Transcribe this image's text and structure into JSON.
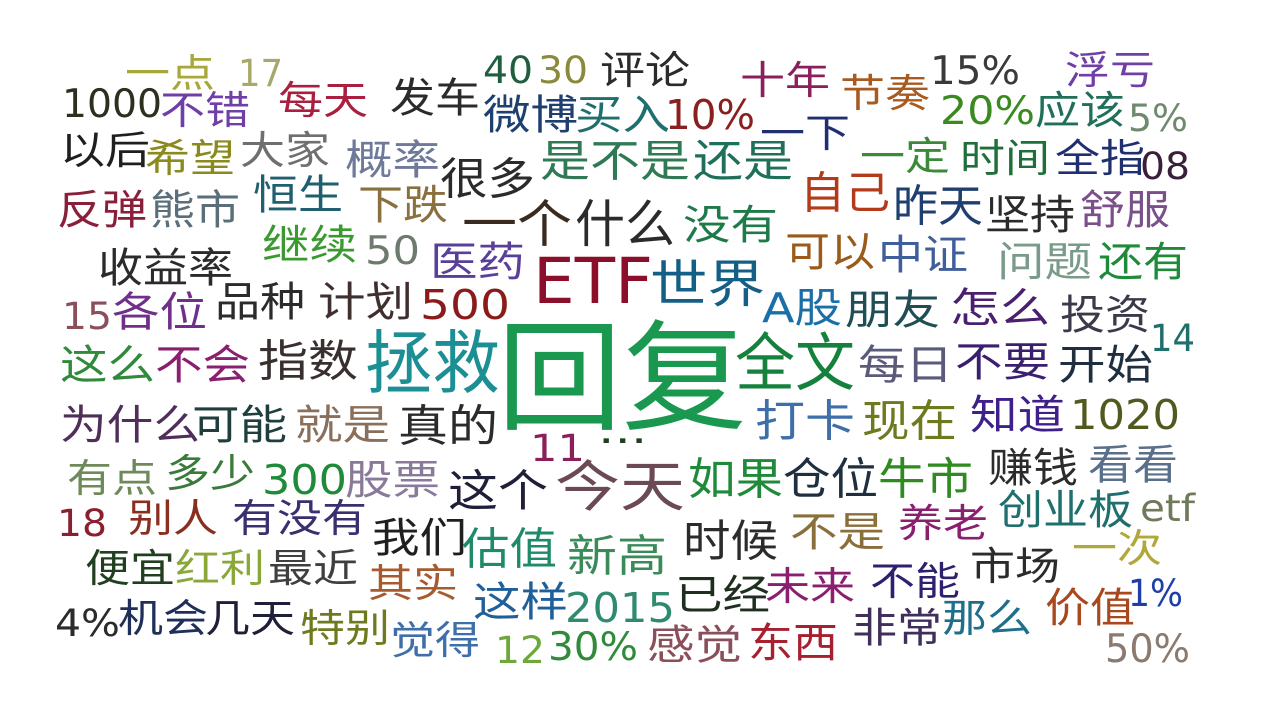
{
  "words": [
    {
      "text": "回复",
      "color": "#1a9850"
    },
    {
      "text": "ETF",
      "color": "#8b0f2a"
    },
    {
      "text": "拯救",
      "color": "#1c8f94"
    },
    {
      "text": "全文",
      "color": "#14823d"
    },
    {
      "text": "今天",
      "color": "#6b4a55"
    },
    {
      "text": "世界",
      "color": "#145f85"
    },
    {
      "text": "A股",
      "color": "#1a6fa8"
    },
    {
      "text": "朋友",
      "color": "#1f4f54"
    },
    {
      "text": "怎么",
      "color": "#4b1f6f"
    },
    {
      "text": "一个",
      "color": "#3b2b1f"
    },
    {
      "text": "什么",
      "color": "#2b2b2b"
    },
    {
      "text": "没有",
      "color": "#1f7a4a"
    },
    {
      "text": "500",
      "color": "#8b1a1a"
    },
    {
      "text": "很多",
      "color": "#2b2b2b"
    },
    {
      "text": "是不是",
      "color": "#2f7a55"
    },
    {
      "text": "还是",
      "color": "#1f6f5a"
    },
    {
      "text": "自己",
      "color": "#b23b1a"
    },
    {
      "text": "昨天",
      "color": "#1f3f6f"
    },
    {
      "text": "坚持",
      "color": "#2b2b2b"
    },
    {
      "text": "舒服",
      "color": "#7a4f8a"
    },
    {
      "text": "可以",
      "color": "#9a5a1a"
    },
    {
      "text": "中证",
      "color": "#3f5f9a"
    },
    {
      "text": "问题",
      "color": "#7a9a8a"
    },
    {
      "text": "还有",
      "color": "#1f8a3a"
    },
    {
      "text": "投资",
      "color": "#3a3a4a"
    },
    {
      "text": "14",
      "color": "#1f6f6a"
    },
    {
      "text": "每日",
      "color": "#5a5a7a"
    },
    {
      "text": "不要",
      "color": "#3a1f6f"
    },
    {
      "text": "开始",
      "color": "#1f2f3f"
    },
    {
      "text": "打卡",
      "color": "#3f6fa8"
    },
    {
      "text": "现在",
      "color": "#6f7a1f"
    },
    {
      "text": "知道",
      "color": "#3f1f8a"
    },
    {
      "text": "1020",
      "color": "#4f5a1f"
    },
    {
      "text": "...",
      "color": "#1f3f1f"
    },
    {
      "text": "11",
      "color": "#8a1f5a"
    },
    {
      "text": "如果",
      "color": "#1f8a3a"
    },
    {
      "text": "仓位",
      "color": "#1f2f3f"
    },
    {
      "text": "牛市",
      "color": "#2f8a1f"
    },
    {
      "text": "赚钱",
      "color": "#2b2b2b"
    },
    {
      "text": "看看",
      "color": "#5a6f8a"
    },
    {
      "text": "创业板",
      "color": "#1f6f6f"
    },
    {
      "text": "etf",
      "color": "#6f7a5a"
    },
    {
      "text": "这个",
      "color": "#1f1f3a"
    },
    {
      "text": "股票",
      "color": "#8a7a9a"
    },
    {
      "text": "300",
      "color": "#1f8a3a"
    },
    {
      "text": "真的",
      "color": "#2b2b2b"
    },
    {
      "text": "就是",
      "color": "#8a6f5a"
    },
    {
      "text": "指数",
      "color": "#3a2f2f"
    },
    {
      "text": "品种",
      "color": "#2b2b2b"
    },
    {
      "text": "计划",
      "color": "#3f2f2f"
    },
    {
      "text": "医药",
      "color": "#5a3f9a"
    },
    {
      "text": "50",
      "color": "#6f7a6f"
    },
    {
      "text": "继续",
      "color": "#3a9a2f"
    },
    {
      "text": "下跌",
      "color": "#8a6f3f"
    },
    {
      "text": "恒生",
      "color": "#1f5f6f"
    },
    {
      "text": "熊市",
      "color": "#5a6f7a"
    },
    {
      "text": "反弹",
      "color": "#8a1f3a"
    },
    {
      "text": "收益率",
      "color": "#2b2b2b"
    },
    {
      "text": "15",
      "color": "#8a4f5a"
    },
    {
      "text": "各位",
      "color": "#6f2f8a"
    },
    {
      "text": "这么",
      "color": "#2f8a3a"
    },
    {
      "text": "不会",
      "color": "#8a1f6f"
    },
    {
      "text": "为什么",
      "color": "#4f2f5a"
    },
    {
      "text": "可能",
      "color": "#1f3f3f"
    },
    {
      "text": "有点",
      "color": "#6f8a5a"
    },
    {
      "text": "多少",
      "color": "#3a7a3a"
    },
    {
      "text": "18",
      "color": "#8a1f2f"
    },
    {
      "text": "别人",
      "color": "#8a2f1f"
    },
    {
      "text": "有没有",
      "color": "#3a2f6f"
    },
    {
      "text": "我们",
      "color": "#1f1f1f"
    },
    {
      "text": "便宜",
      "color": "#1f3f1f"
    },
    {
      "text": "红利",
      "color": "#8aa83a"
    },
    {
      "text": "最近",
      "color": "#3f3f3f"
    },
    {
      "text": "估值",
      "color": "#1f8a6a"
    },
    {
      "text": "新高",
      "color": "#3a8a5a"
    },
    {
      "text": "时候",
      "color": "#2b2b2b"
    },
    {
      "text": "不是",
      "color": "#8a6f3a"
    },
    {
      "text": "养老",
      "color": "#8a1f6f"
    },
    {
      "text": "市场",
      "color": "#2b2b2b"
    },
    {
      "text": "一次",
      "color": "#b2a83a"
    },
    {
      "text": "4%",
      "color": "#2b2b2b"
    },
    {
      "text": "机会",
      "color": "#1f2f5a"
    },
    {
      "text": "几天",
      "color": "#1f1f3a"
    },
    {
      "text": "其实",
      "color": "#a85a2f"
    },
    {
      "text": "这样",
      "color": "#1f5f9a"
    },
    {
      "text": "2015",
      "color": "#2f8a6f"
    },
    {
      "text": "已经",
      "color": "#1f2f1f"
    },
    {
      "text": "未来",
      "color": "#8a1f6f"
    },
    {
      "text": "不能",
      "color": "#2f1f6f"
    },
    {
      "text": "1%",
      "color": "#1f3fa8"
    },
    {
      "text": "特别",
      "color": "#6f7a1f"
    },
    {
      "text": "觉得",
      "color": "#3f6fa8"
    },
    {
      "text": "12",
      "color": "#6fa83a"
    },
    {
      "text": "30%",
      "color": "#2f8a3a"
    },
    {
      "text": "感觉",
      "color": "#8a4f5a"
    },
    {
      "text": "东西",
      "color": "#a81f2f"
    },
    {
      "text": "非常",
      "color": "#3f2f5a"
    },
    {
      "text": "那么",
      "color": "#1f6f8a"
    },
    {
      "text": "价值",
      "color": "#a8481f"
    },
    {
      "text": "50%",
      "color": "#8a7a6f"
    },
    {
      "text": "1000",
      "color": "#2f2f1f"
    },
    {
      "text": "一点",
      "color": "#a8a83a"
    },
    {
      "text": "17",
      "color": "#a8a86a"
    },
    {
      "text": "不错",
      "color": "#6f3fa8"
    },
    {
      "text": "每天",
      "color": "#a81f3f"
    },
    {
      "text": "发车",
      "color": "#2b2b2b"
    },
    {
      "text": "40",
      "color": "#1f5f3f"
    },
    {
      "text": "30",
      "color": "#8a8a3a"
    },
    {
      "text": "评论",
      "color": "#2b2b2b"
    },
    {
      "text": "微博",
      "color": "#1f3f6f"
    },
    {
      "text": "买入",
      "color": "#1f6f6f"
    },
    {
      "text": "10%",
      "color": "#8a1f1f"
    },
    {
      "text": "十年",
      "color": "#8a1f5a"
    },
    {
      "text": "一下",
      "color": "#1f2f6f"
    },
    {
      "text": "节奏",
      "color": "#a85a1f"
    },
    {
      "text": "15%",
      "color": "#3a3a3a"
    },
    {
      "text": "浮亏",
      "color": "#6f3fa8"
    },
    {
      "text": "20%",
      "color": "#3a8a1f"
    },
    {
      "text": "应该",
      "color": "#1f6f5a"
    },
    {
      "text": "5%",
      "color": "#6f8a6f"
    },
    {
      "text": "一定",
      "color": "#3a8a3a"
    },
    {
      "text": "时间",
      "color": "#1f6f3a"
    },
    {
      "text": "全指",
      "color": "#1f2f6f"
    },
    {
      "text": "08",
      "color": "#3a1f3a"
    },
    {
      "text": "以后",
      "color": "#1f1f1f"
    },
    {
      "text": "希望",
      "color": "#8a8a1f"
    },
    {
      "text": "大家",
      "color": "#6f6f6f"
    },
    {
      "text": "概率",
      "color": "#6f7a9a"
    }
  ]
}
